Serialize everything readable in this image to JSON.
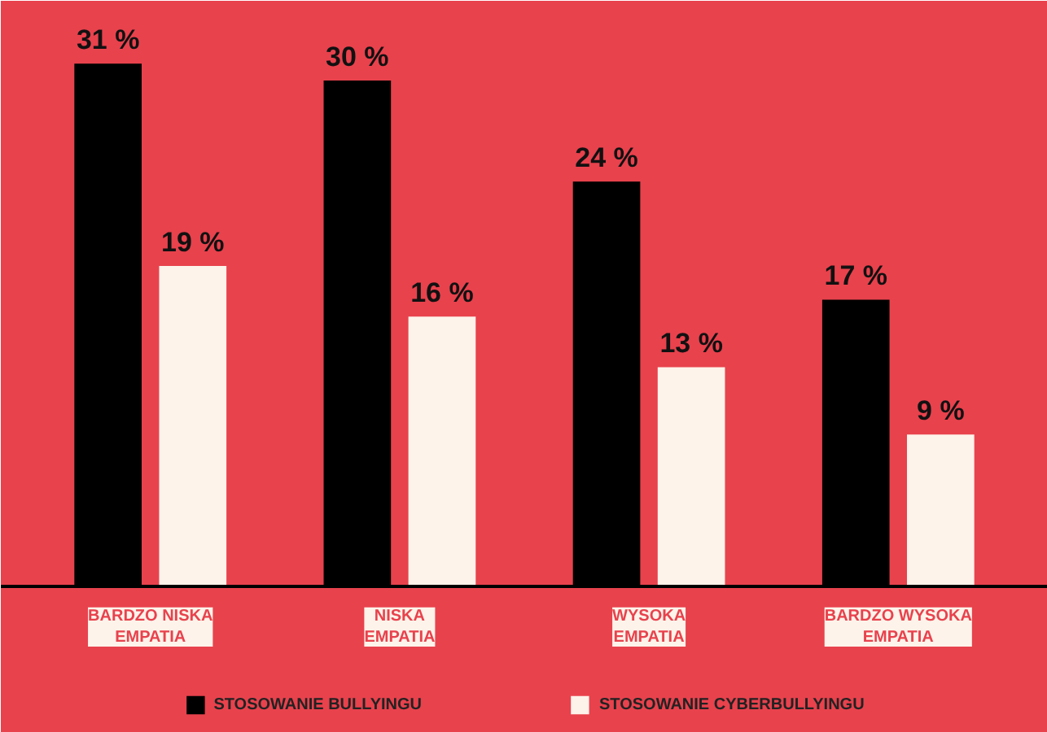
{
  "chart_data": {
    "type": "bar",
    "categories": [
      "BARDZO NISKA\nEMPATIA",
      "NISKA\nEMPATIA",
      "WYSOKA\nEMPATIA",
      "BARDZO WYSOKA\nEMPATIA"
    ],
    "series": [
      {
        "name": "STOSOWANIE BULLYINGU",
        "color": "#000000",
        "values": [
          31,
          30,
          24,
          17
        ],
        "value_labels": [
          "31 %",
          "30 %",
          "24 %",
          "17 %"
        ]
      },
      {
        "name": "STOSOWANIE CYBERBULLYINGU",
        "color": "#fdf3ea",
        "values": [
          19,
          16,
          13,
          9
        ],
        "value_labels": [
          "19 %",
          "16 %",
          "13 %",
          "9 %"
        ]
      }
    ],
    "legend": "bottom",
    "grid": false
  }
}
